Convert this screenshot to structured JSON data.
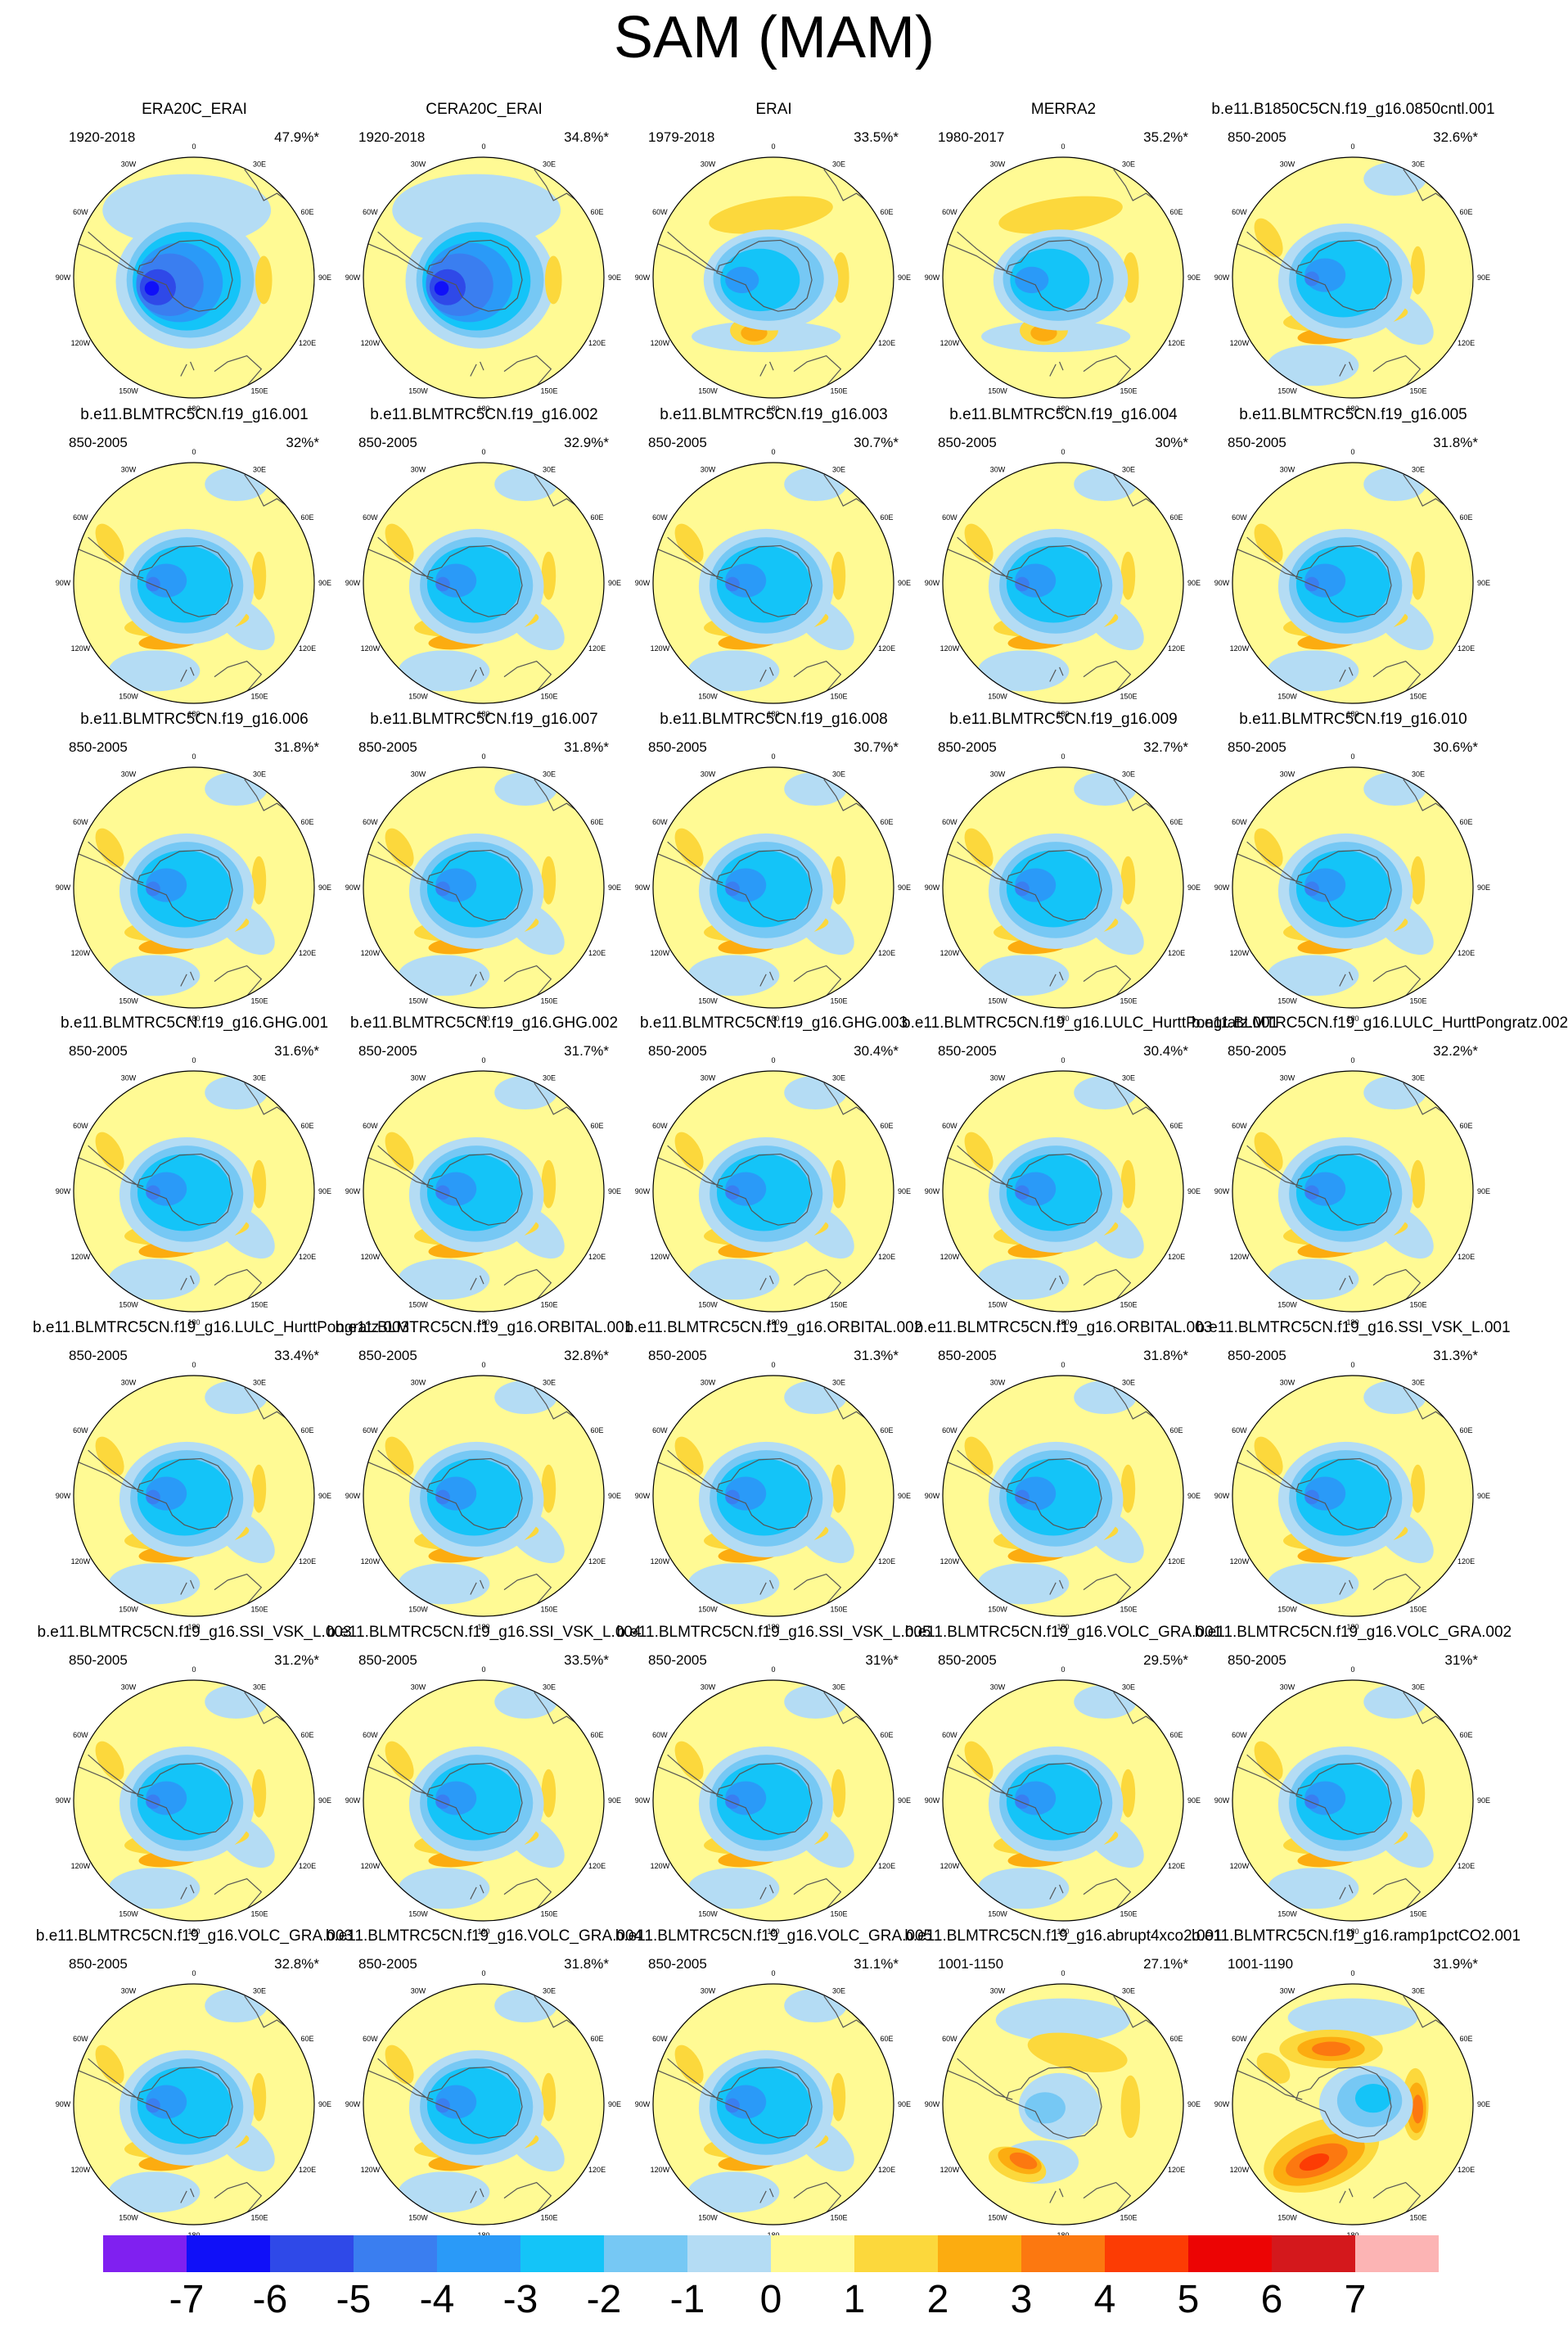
{
  "title": "SAM (MAM)",
  "lon_labels": [
    "0",
    "30E",
    "60E",
    "90E",
    "120E",
    "150E",
    "180",
    "150W",
    "120W",
    "90W",
    "60W",
    "30W"
  ],
  "palette": {
    "level_colors": [
      "#8020f0",
      "#1010f8",
      "#2f49e8",
      "#3a7ef0",
      "#2a9af8",
      "#14c4f8",
      "#76c8f4",
      "#b4dcf4",
      "#fffa94",
      "#fcd83c",
      "#fcac10",
      "#fc7810",
      "#fc3c04",
      "#ec0404",
      "#d4181c",
      "#fcb4b4"
    ],
    "land_outline": "#555555",
    "ring": "#000000"
  },
  "colorbar": {
    "labels": [
      "-7",
      "-6",
      "-5",
      "-4",
      "-3",
      "-2",
      "-1",
      "0",
      "1",
      "2",
      "3",
      "4",
      "5",
      "6",
      "7"
    ]
  },
  "panels": [
    {
      "name": "ERA20C_ERAI",
      "period": "1920-2018",
      "pct": "47.9%*",
      "pattern": "obs"
    },
    {
      "name": "CERA20C_ERAI",
      "period": "1920-2018",
      "pct": "34.8%*",
      "pattern": "obs"
    },
    {
      "name": "ERAI",
      "period": "1979-2018",
      "pct": "33.5%*",
      "pattern": "rean"
    },
    {
      "name": "MERRA2",
      "period": "1980-2017",
      "pct": "35.2%*",
      "pattern": "rean"
    },
    {
      "name": "b.e11.B1850C5CN.f19_g16.0850cntl.001",
      "period": "850-2005",
      "pct": "32.6%*",
      "pattern": "model"
    },
    {
      "name": "b.e11.BLMTRC5CN.f19_g16.001",
      "period": "850-2005",
      "pct": "32%*",
      "pattern": "model"
    },
    {
      "name": "b.e11.BLMTRC5CN.f19_g16.002",
      "period": "850-2005",
      "pct": "32.9%*",
      "pattern": "model"
    },
    {
      "name": "b.e11.BLMTRC5CN.f19_g16.003",
      "period": "850-2005",
      "pct": "30.7%*",
      "pattern": "model"
    },
    {
      "name": "b.e11.BLMTRC5CN.f19_g16.004",
      "period": "850-2005",
      "pct": "30%*",
      "pattern": "model"
    },
    {
      "name": "b.e11.BLMTRC5CN.f19_g16.005",
      "period": "850-2005",
      "pct": "31.8%*",
      "pattern": "model"
    },
    {
      "name": "b.e11.BLMTRC5CN.f19_g16.006",
      "period": "850-2005",
      "pct": "31.8%*",
      "pattern": "model"
    },
    {
      "name": "b.e11.BLMTRC5CN.f19_g16.007",
      "period": "850-2005",
      "pct": "31.8%*",
      "pattern": "model"
    },
    {
      "name": "b.e11.BLMTRC5CN.f19_g16.008",
      "period": "850-2005",
      "pct": "30.7%*",
      "pattern": "model"
    },
    {
      "name": "b.e11.BLMTRC5CN.f19_g16.009",
      "period": "850-2005",
      "pct": "32.7%*",
      "pattern": "model"
    },
    {
      "name": "b.e11.BLMTRC5CN.f19_g16.010",
      "period": "850-2005",
      "pct": "30.6%*",
      "pattern": "model"
    },
    {
      "name": "b.e11.BLMTRC5CN.f19_g16.GHG.001",
      "period": "850-2005",
      "pct": "31.6%*",
      "pattern": "model"
    },
    {
      "name": "b.e11.BLMTRC5CN.f19_g16.GHG.002",
      "period": "850-2005",
      "pct": "31.7%*",
      "pattern": "model"
    },
    {
      "name": "b.e11.BLMTRC5CN.f19_g16.GHG.003",
      "period": "850-2005",
      "pct": "30.4%*",
      "pattern": "model"
    },
    {
      "name": "b.e11.BLMTRC5CN.f19_g16.LULC_HurttPongratz.001",
      "period": "850-2005",
      "pct": "30.4%*",
      "pattern": "model"
    },
    {
      "name": "b.e11.BLMTRC5CN.f19_g16.LULC_HurttPongratz.002",
      "period": "850-2005",
      "pct": "32.2%*",
      "pattern": "model"
    },
    {
      "name": "b.e11.BLMTRC5CN.f19_g16.LULC_HurttPongratz.003",
      "period": "850-2005",
      "pct": "33.4%*",
      "pattern": "model"
    },
    {
      "name": "b.e11.BLMTRC5CN.f19_g16.ORBITAL.001",
      "period": "850-2005",
      "pct": "32.8%*",
      "pattern": "model"
    },
    {
      "name": "b.e11.BLMTRC5CN.f19_g16.ORBITAL.002",
      "period": "850-2005",
      "pct": "31.3%*",
      "pattern": "model"
    },
    {
      "name": "b.e11.BLMTRC5CN.f19_g16.ORBITAL.003",
      "period": "850-2005",
      "pct": "31.8%*",
      "pattern": "model"
    },
    {
      "name": "b.e11.BLMTRC5CN.f19_g16.SSI_VSK_L.001",
      "period": "850-2005",
      "pct": "31.3%*",
      "pattern": "model"
    },
    {
      "name": "b.e11.BLMTRC5CN.f19_g16.SSI_VSK_L.003",
      "period": "850-2005",
      "pct": "31.2%*",
      "pattern": "model"
    },
    {
      "name": "b.e11.BLMTRC5CN.f19_g16.SSI_VSK_L.004",
      "period": "850-2005",
      "pct": "33.5%*",
      "pattern": "model"
    },
    {
      "name": "b.e11.BLMTRC5CN.f19_g16.SSI_VSK_L.005",
      "period": "850-2005",
      "pct": "31%*",
      "pattern": "model"
    },
    {
      "name": "b.e11.BLMTRC5CN.f19_g16.VOLC_GRA.001",
      "period": "850-2005",
      "pct": "29.5%*",
      "pattern": "model"
    },
    {
      "name": "b.e11.BLMTRC5CN.f19_g16.VOLC_GRA.002",
      "period": "850-2005",
      "pct": "31%*",
      "pattern": "model"
    },
    {
      "name": "b.e11.BLMTRC5CN.f19_g16.VOLC_GRA.003",
      "period": "850-2005",
      "pct": "32.8%*",
      "pattern": "model"
    },
    {
      "name": "b.e11.BLMTRC5CN.f19_g16.VOLC_GRA.004",
      "period": "850-2005",
      "pct": "31.8%*",
      "pattern": "model"
    },
    {
      "name": "b.e11.BLMTRC5CN.f19_g16.VOLC_GRA.005",
      "period": "850-2005",
      "pct": "31.1%*",
      "pattern": "model"
    },
    {
      "name": "b.e11.BLMTRC5CN.f19_g16.abrupt4xco2.001",
      "period": "1001-1150",
      "pct": "27.1%*",
      "pattern": "abrupt"
    },
    {
      "name": "b.e11.BLMTRC5CN.f19_g16.ramp1pctCO2.001",
      "period": "1001-1190",
      "pct": "31.9%*",
      "pattern": "ramp"
    }
  ]
}
